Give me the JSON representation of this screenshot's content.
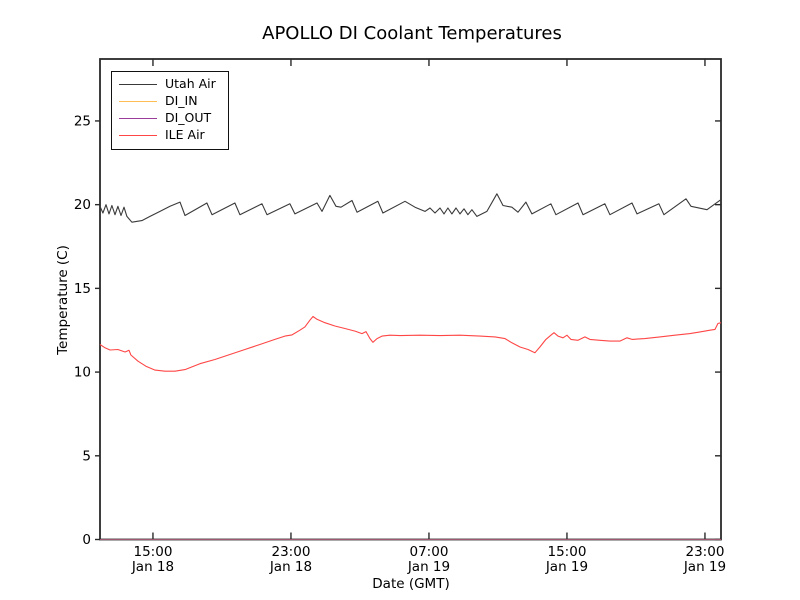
{
  "window": {
    "background": "#ffffff"
  },
  "chart_data": {
    "type": "line",
    "title": "APOLLO DI Coolant Temperatures",
    "xlabel": "Date (GMT)",
    "ylabel": "Temperature (C)",
    "grid": false,
    "legend_position": "upper left",
    "x_unit_note": "hours since Jan 18 00:00 GMT",
    "x_range": [
      11.93,
      47.93
    ],
    "y_range": [
      0,
      28.7
    ],
    "y_ticks": [
      {
        "v": 0,
        "label": "0"
      },
      {
        "v": 5,
        "label": "5"
      },
      {
        "v": 10,
        "label": "10"
      },
      {
        "v": 15,
        "label": "15"
      },
      {
        "v": 20,
        "label": "20"
      },
      {
        "v": 25,
        "label": "25"
      }
    ],
    "x_ticks": [
      {
        "t": 15,
        "time": "15:00",
        "date": "Jan 18"
      },
      {
        "t": 23,
        "time": "23:00",
        "date": "Jan 18"
      },
      {
        "t": 31,
        "time": "07:00",
        "date": "Jan 19"
      },
      {
        "t": 39,
        "time": "15:00",
        "date": "Jan 19"
      },
      {
        "t": 47,
        "time": "23:00",
        "date": "Jan 19"
      }
    ],
    "series": [
      {
        "name": "Utah Air",
        "color": "#3a3a3a",
        "opacity": 1,
        "points": [
          [
            11.93,
            19.9
          ],
          [
            12.1,
            19.5
          ],
          [
            12.28,
            20.0
          ],
          [
            12.45,
            19.45
          ],
          [
            12.62,
            19.95
          ],
          [
            12.8,
            19.4
          ],
          [
            12.97,
            19.9
          ],
          [
            13.15,
            19.35
          ],
          [
            13.32,
            19.85
          ],
          [
            13.49,
            19.3
          ],
          [
            13.78,
            18.95
          ],
          [
            14.36,
            19.05
          ],
          [
            14.83,
            19.3
          ],
          [
            15.41,
            19.6
          ],
          [
            15.99,
            19.9
          ],
          [
            16.57,
            20.15
          ],
          [
            16.86,
            19.35
          ],
          [
            18.13,
            20.1
          ],
          [
            18.42,
            19.4
          ],
          [
            19.75,
            20.1
          ],
          [
            20.04,
            19.4
          ],
          [
            21.32,
            20.05
          ],
          [
            21.61,
            19.4
          ],
          [
            22.94,
            20.05
          ],
          [
            23.23,
            19.45
          ],
          [
            24.51,
            20.1
          ],
          [
            24.8,
            19.6
          ],
          [
            25.26,
            20.55
          ],
          [
            25.61,
            19.9
          ],
          [
            25.9,
            19.85
          ],
          [
            26.54,
            20.25
          ],
          [
            26.83,
            19.55
          ],
          [
            28.04,
            20.2
          ],
          [
            28.33,
            19.5
          ],
          [
            29.61,
            20.2
          ],
          [
            30.19,
            19.85
          ],
          [
            30.77,
            19.6
          ],
          [
            31.06,
            19.8
          ],
          [
            31.35,
            19.5
          ],
          [
            31.64,
            19.8
          ],
          [
            31.87,
            19.45
          ],
          [
            32.1,
            19.8
          ],
          [
            32.33,
            19.45
          ],
          [
            32.57,
            19.8
          ],
          [
            32.8,
            19.45
          ],
          [
            33.03,
            19.75
          ],
          [
            33.26,
            19.4
          ],
          [
            33.49,
            19.7
          ],
          [
            33.78,
            19.3
          ],
          [
            34.36,
            19.6
          ],
          [
            34.94,
            20.65
          ],
          [
            35.29,
            19.95
          ],
          [
            35.81,
            19.85
          ],
          [
            36.16,
            19.55
          ],
          [
            36.62,
            20.15
          ],
          [
            36.97,
            19.45
          ],
          [
            38.07,
            20.05
          ],
          [
            38.36,
            19.4
          ],
          [
            39.64,
            20.1
          ],
          [
            39.93,
            19.4
          ],
          [
            41.2,
            20.05
          ],
          [
            41.49,
            19.4
          ],
          [
            42.77,
            20.1
          ],
          [
            43.06,
            19.45
          ],
          [
            44.33,
            20.05
          ],
          [
            44.62,
            19.4
          ],
          [
            45.9,
            20.35
          ],
          [
            46.19,
            19.9
          ],
          [
            47.12,
            19.7
          ],
          [
            47.93,
            20.3
          ]
        ]
      },
      {
        "name": "DI_IN",
        "color": "#ffbd54",
        "opacity": 0.55,
        "points": [
          [
            11.93,
            0
          ],
          [
            47.93,
            0
          ]
        ]
      },
      {
        "name": "DI_OUT",
        "color": "#9a3d9a",
        "opacity": 0.55,
        "points": [
          [
            11.93,
            0
          ],
          [
            47.93,
            0
          ]
        ]
      },
      {
        "name": "ILE Air",
        "color": "#ff4646",
        "opacity": 1,
        "points": [
          [
            11.93,
            11.65
          ],
          [
            12.22,
            11.45
          ],
          [
            12.51,
            11.32
          ],
          [
            12.97,
            11.35
          ],
          [
            13.38,
            11.2
          ],
          [
            13.61,
            11.3
          ],
          [
            13.72,
            11.02
          ],
          [
            14.13,
            10.65
          ],
          [
            14.59,
            10.35
          ],
          [
            15.12,
            10.12
          ],
          [
            15.7,
            10.05
          ],
          [
            16.28,
            10.05
          ],
          [
            16.86,
            10.15
          ],
          [
            17.72,
            10.5
          ],
          [
            18.59,
            10.75
          ],
          [
            19.46,
            11.05
          ],
          [
            20.33,
            11.35
          ],
          [
            21.2,
            11.65
          ],
          [
            22.07,
            11.95
          ],
          [
            22.65,
            12.15
          ],
          [
            23.06,
            12.22
          ],
          [
            23.52,
            12.5
          ],
          [
            23.81,
            12.7
          ],
          [
            24.1,
            13.1
          ],
          [
            24.28,
            13.32
          ],
          [
            24.51,
            13.15
          ],
          [
            24.97,
            12.95
          ],
          [
            25.55,
            12.75
          ],
          [
            26.13,
            12.6
          ],
          [
            26.71,
            12.45
          ],
          [
            27.12,
            12.3
          ],
          [
            27.35,
            12.42
          ],
          [
            27.58,
            12.0
          ],
          [
            27.75,
            11.78
          ],
          [
            27.99,
            12.0
          ],
          [
            28.28,
            12.15
          ],
          [
            28.74,
            12.2
          ],
          [
            29.32,
            12.18
          ],
          [
            30.48,
            12.2
          ],
          [
            31.64,
            12.18
          ],
          [
            32.8,
            12.2
          ],
          [
            33.96,
            12.15
          ],
          [
            34.83,
            12.1
          ],
          [
            35.41,
            12.0
          ],
          [
            35.81,
            11.75
          ],
          [
            36.28,
            11.5
          ],
          [
            36.74,
            11.35
          ],
          [
            37.14,
            11.15
          ],
          [
            37.43,
            11.5
          ],
          [
            37.78,
            11.95
          ],
          [
            38.07,
            12.2
          ],
          [
            38.25,
            12.35
          ],
          [
            38.48,
            12.15
          ],
          [
            38.77,
            12.05
          ],
          [
            39.0,
            12.2
          ],
          [
            39.23,
            11.95
          ],
          [
            39.64,
            11.9
          ],
          [
            40.04,
            12.1
          ],
          [
            40.33,
            11.95
          ],
          [
            40.91,
            11.9
          ],
          [
            41.49,
            11.85
          ],
          [
            42.07,
            11.85
          ],
          [
            42.48,
            12.05
          ],
          [
            42.77,
            11.95
          ],
          [
            43.52,
            12.0
          ],
          [
            44.39,
            12.1
          ],
          [
            45.26,
            12.2
          ],
          [
            46.13,
            12.3
          ],
          [
            46.71,
            12.4
          ],
          [
            47.29,
            12.5
          ],
          [
            47.58,
            12.55
          ],
          [
            47.75,
            12.9
          ],
          [
            47.93,
            12.95
          ]
        ]
      }
    ],
    "frame_color": "#2a2a2a"
  }
}
